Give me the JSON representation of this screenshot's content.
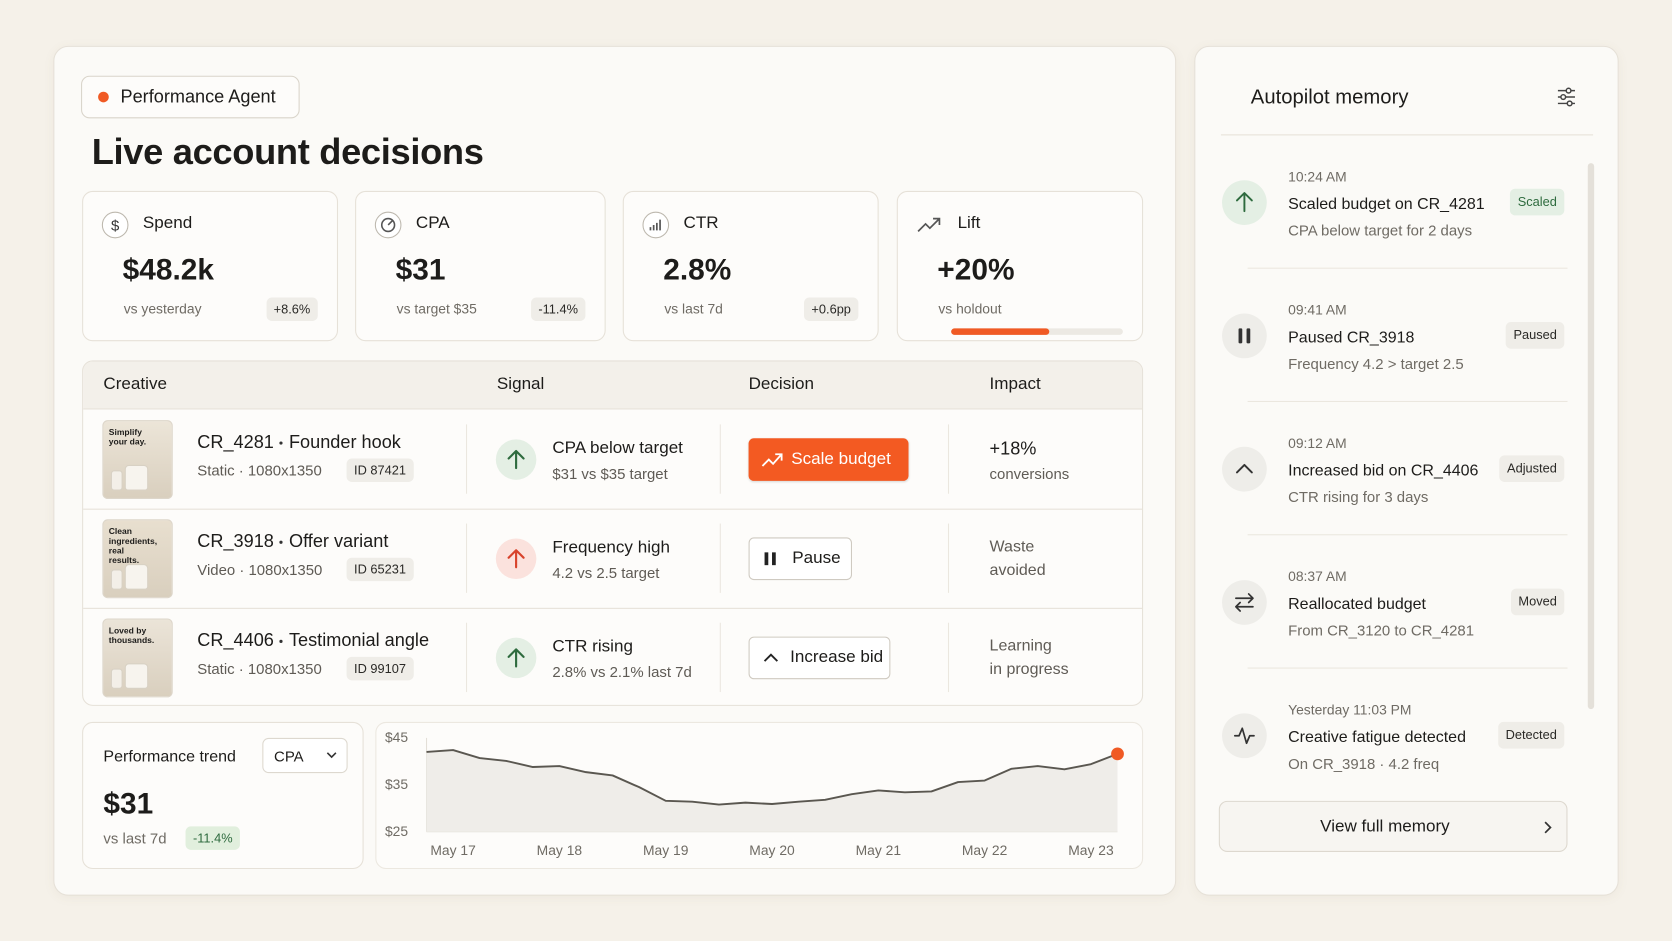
{
  "header": {
    "badge": "Performance Agent",
    "title": "Live account decisions"
  },
  "kpis": [
    {
      "label": "Spend",
      "value": "$48.2k",
      "note": "vs yesterday",
      "delta": "+8.6%"
    },
    {
      "label": "CPA",
      "value": "$31",
      "note": "vs target $35",
      "delta": "-11.4%"
    },
    {
      "label": "CTR",
      "value": "2.8%",
      "note": "vs last 7d",
      "delta": "+0.6pp"
    },
    {
      "label": "Lift",
      "value": "+20%",
      "note": "vs holdout",
      "progress": 57
    }
  ],
  "table": {
    "headers": [
      "Creative",
      "Signal",
      "Decision",
      "Impact"
    ],
    "rows": [
      {
        "thumb": "Simplify your day.",
        "name": "CR_4281",
        "variant": "Founder hook",
        "format": "Static · 1080x1350",
        "id": "ID 87421",
        "signal": "CPA below target",
        "signal_note": "$31 vs $35 target",
        "decision": "Scale budget",
        "impact": "+18%",
        "impact_note": "conversions"
      },
      {
        "thumb": "Clean ingredients, real results.",
        "name": "CR_3918",
        "variant": "Offer variant",
        "format": "Video · 1080x1350",
        "id": "ID 65231",
        "signal": "Frequency high",
        "signal_note": "4.2 vs 2.5 target",
        "decision": "Pause",
        "impact": "Waste",
        "impact_note": "avoided"
      },
      {
        "thumb": "Loved by thousands.",
        "name": "CR_4406",
        "variant": "Testimonial angle",
        "format": "Static · 1080x1350",
        "id": "ID 99107",
        "signal": "CTR rising",
        "signal_note": "2.8% vs 2.1% last 7d",
        "decision": "Increase bid",
        "impact": "Learning",
        "impact_note": "in progress"
      }
    ]
  },
  "trend": {
    "title": "Performance trend",
    "metric": "CPA",
    "value": "$31",
    "note": "vs last 7d",
    "delta": "-11.4%"
  },
  "chart_data": {
    "type": "line",
    "categories": [
      null,
      "May 17",
      null,
      null,
      null,
      "May 18",
      null,
      null,
      null,
      "May 19",
      null,
      null,
      null,
      "May 20",
      null,
      null,
      null,
      "May 21",
      null,
      null,
      null,
      "May 22",
      null,
      null,
      null,
      "May 23",
      null
    ],
    "values": [
      42.0,
      42.4,
      40.7,
      40.1,
      38.8,
      39.0,
      37.7,
      37.0,
      34.5,
      31.6,
      31.4,
      30.8,
      31.2,
      30.9,
      31.4,
      31.8,
      33.0,
      33.8,
      33.4,
      33.6,
      35.6,
      35.9,
      38.4,
      39.0,
      38.3,
      39.4,
      41.6
    ],
    "color": "#5a5750",
    "highlight_color": "#f05a24",
    "ylim": [
      25,
      45
    ],
    "yticks": [
      {
        "value": 45,
        "label": "$45"
      },
      {
        "value": 35,
        "label": "$35"
      },
      {
        "value": 25,
        "label": "$25"
      }
    ],
    "grid": false
  },
  "memory": {
    "title": "Autopilot memory",
    "items": [
      {
        "time": "10:24 AM",
        "title": "Scaled budget on CR_4281",
        "note": "CPA below target for 2 days",
        "tag": "Scaled"
      },
      {
        "time": "09:41 AM",
        "title": "Paused CR_3918",
        "note": "Frequency 4.2 > target 2.5",
        "tag": "Paused"
      },
      {
        "time": "09:12 AM",
        "title": "Increased bid on CR_4406",
        "note": "CTR rising for 3 days",
        "tag": "Adjusted"
      },
      {
        "time": "08:37 AM",
        "title": "Reallocated budget",
        "note": "From CR_3120 to CR_4281",
        "tag": "Moved"
      },
      {
        "time": "Yesterday 11:03 PM",
        "title": "Creative fatigue detected",
        "note": "On CR_3918 · 4.2 freq",
        "tag": "Detected"
      }
    ],
    "button": "View full memory"
  }
}
